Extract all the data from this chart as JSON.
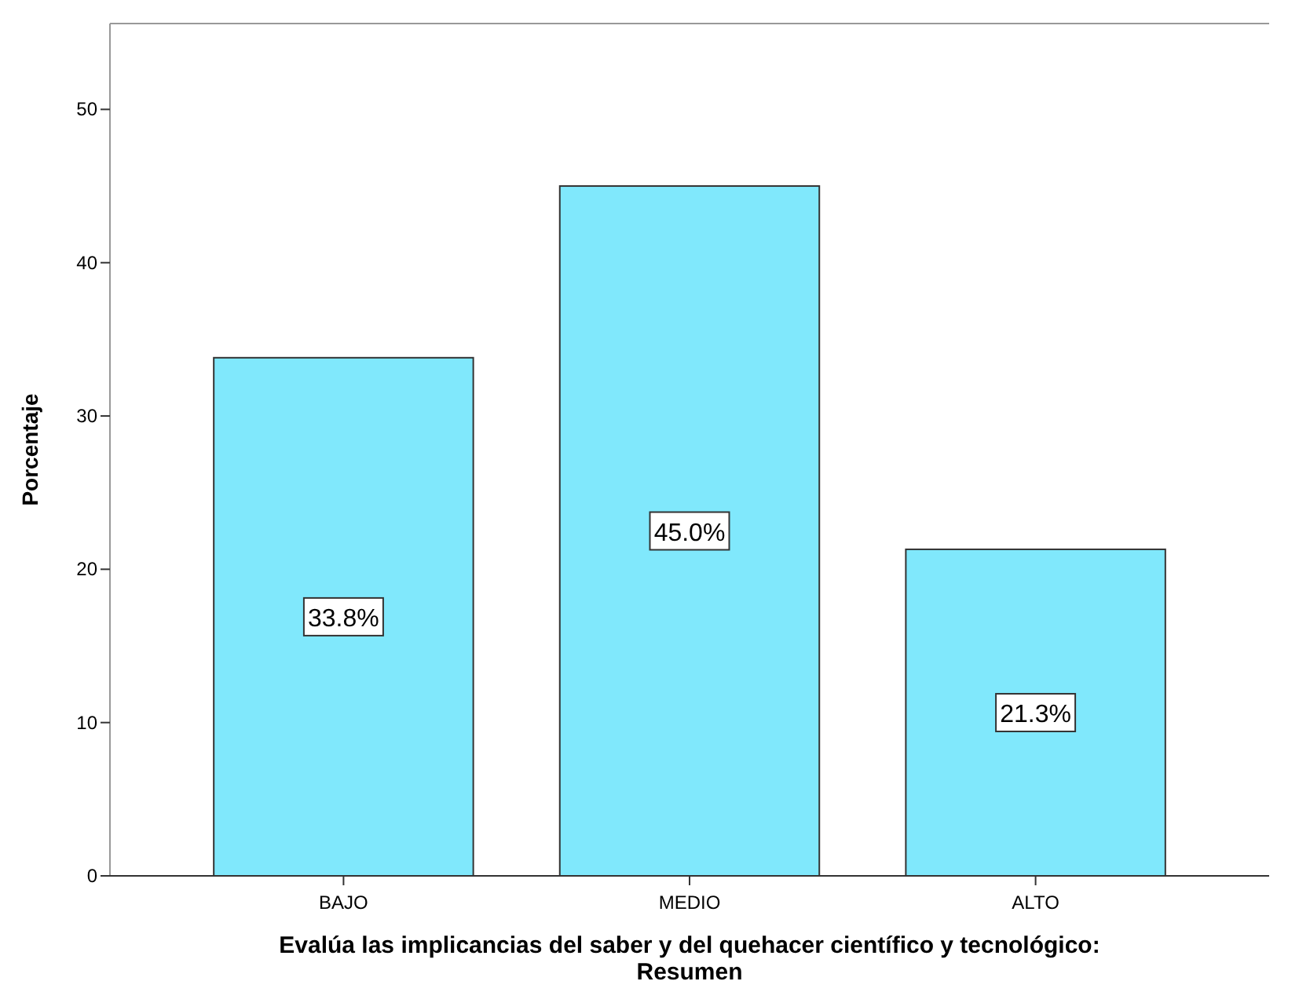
{
  "chart_data": {
    "type": "bar",
    "xlabel": "Evalúa las implicancias del saber y del quehacer científico y tecnológico: Resumen",
    "ylabel": "Porcentaje",
    "categories": [
      "BAJO",
      "MEDIO",
      "ALTO"
    ],
    "values": [
      33.8,
      45.0,
      21.3
    ],
    "value_labels": [
      "33.8%",
      "45.0%",
      "21.3%"
    ],
    "color": "#80e8fc",
    "ylim": [
      0,
      55.6
    ],
    "yticks": [
      0,
      10,
      20,
      30,
      40,
      50
    ],
    "grid": false
  }
}
